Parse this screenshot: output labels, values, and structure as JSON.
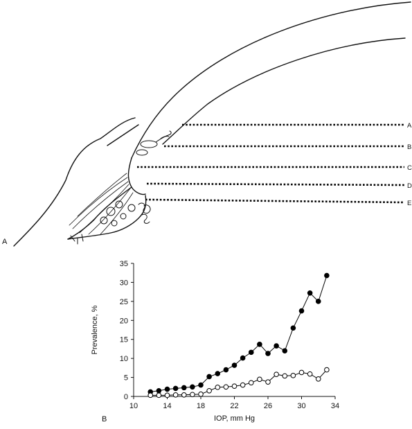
{
  "panel_a": {
    "panel_label": "A",
    "line_labels": [
      "A",
      "B",
      "C",
      "D",
      "E"
    ]
  },
  "panel_b": {
    "panel_label": "B"
  },
  "chart_data": {
    "type": "line",
    "xlabel": "IOP, mm Hg",
    "ylabel": "Prevalence, %",
    "xlim": [
      10,
      34
    ],
    "ylim": [
      0,
      35
    ],
    "x_ticks": [
      10,
      14,
      18,
      22,
      26,
      30,
      34
    ],
    "y_ticks": [
      0,
      5,
      10,
      15,
      20,
      25,
      30,
      35
    ],
    "grid": false,
    "series": [
      {
        "marker": "filled-circle",
        "color": "#000000",
        "x": [
          12,
          13,
          14,
          15,
          16,
          17,
          18,
          19,
          20,
          21,
          22,
          23,
          24,
          25,
          26,
          27,
          28,
          29,
          30,
          31,
          32,
          33
        ],
        "y": [
          1.2,
          1.5,
          1.9,
          2.1,
          2.3,
          2.5,
          3.0,
          5.2,
          6.0,
          7.0,
          8.2,
          10.1,
          11.6,
          13.7,
          11.3,
          13.3,
          12.0,
          18.0,
          22.5,
          27.2,
          25.0,
          31.8
        ]
      },
      {
        "marker": "open-circle",
        "color": "#000000",
        "x": [
          12,
          13,
          14,
          15,
          16,
          17,
          18,
          19,
          20,
          21,
          22,
          23,
          24,
          25,
          26,
          27,
          28,
          29,
          30,
          31,
          32,
          33
        ],
        "y": [
          0.3,
          0.3,
          0.3,
          0.4,
          0.4,
          0.5,
          0.6,
          1.5,
          2.4,
          2.5,
          2.7,
          3.0,
          3.6,
          4.5,
          3.8,
          5.8,
          5.4,
          5.5,
          6.3,
          5.9,
          4.6,
          7.0
        ]
      }
    ]
  }
}
